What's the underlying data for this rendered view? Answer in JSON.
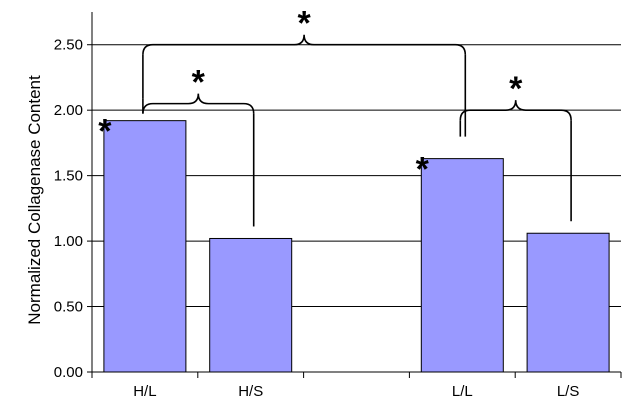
{
  "chart_data": {
    "type": "bar",
    "title": "",
    "xlabel": "",
    "ylabel": "Normalized Collagenase Content",
    "ylim": [
      0,
      2.75
    ],
    "yticks": [
      "0.00",
      "0.50",
      "1.00",
      "1.50",
      "2.00",
      "2.50"
    ],
    "grid": true,
    "categories": [
      "H/L",
      "H/S",
      "",
      "L/L",
      "L/S"
    ],
    "values": [
      1.92,
      1.02,
      null,
      1.63,
      1.06
    ],
    "significance": [
      {
        "from": "H/L",
        "to": "H/S",
        "label": "*"
      },
      {
        "from": "L/L",
        "to": "L/S",
        "label": "*"
      },
      {
        "from": "H/L",
        "to": "L/L",
        "label": "*"
      }
    ],
    "bar_markers": [
      {
        "category": "H/L",
        "label": "*"
      },
      {
        "category": "L/L",
        "label": "*"
      }
    ]
  },
  "colors": {
    "bar_fill": "#9999FF",
    "bar_stroke": "#000000",
    "grid": "#000000",
    "axis": "#000000"
  }
}
